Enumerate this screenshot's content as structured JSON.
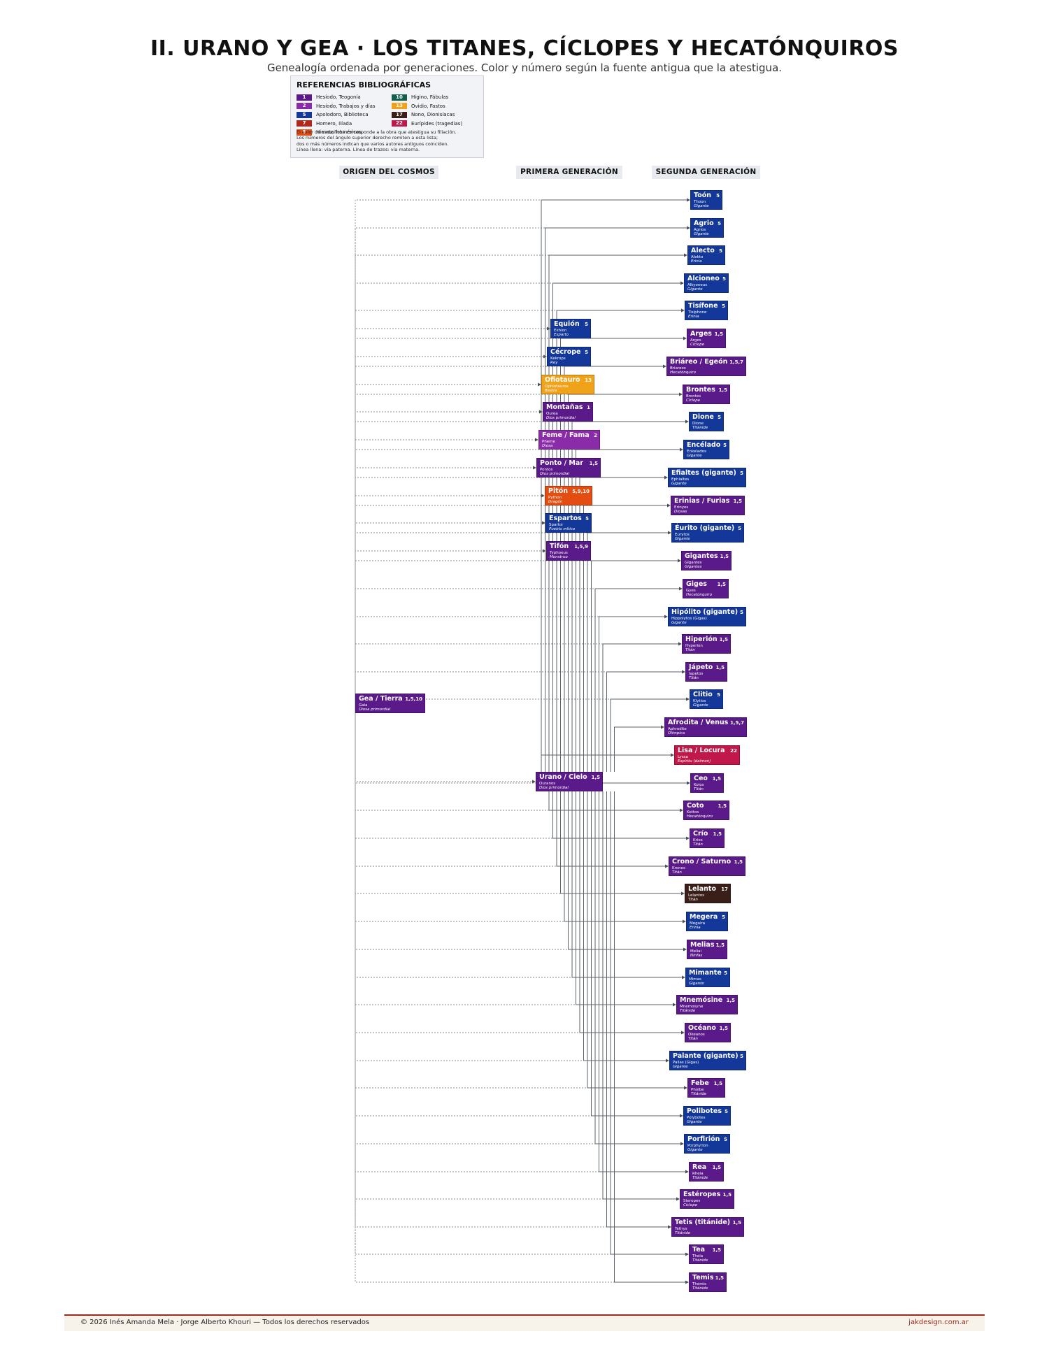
{
  "title": "II. URANO Y GEA · LOS TITANES, CÍCLOPES Y HECATÓNQUIROS",
  "subtitle": "Genealogía ordenada por generaciones. Color y número según la fuente antigua que la atestigua.",
  "legend": {
    "title": "REFERENCIAS BIBLIOGRÁFICAS",
    "sources": [
      {
        "num": "1",
        "label": "Hesíodo, Teogonía",
        "color": "#5b1a8a"
      },
      {
        "num": "2",
        "label": "Hesíodo, Trabajos y días",
        "color": "#8a2ba8"
      },
      {
        "num": "5",
        "label": "Apolodoro, Biblioteca",
        "color": "#14389a"
      },
      {
        "num": "7",
        "label": "Homero, Ilíada",
        "color": "#b0281c"
      },
      {
        "num": "9",
        "label": "Himnos homéricos",
        "color": "#e44d12"
      },
      {
        "num": "10",
        "label": "Higino, Fábulas",
        "color": "#145e4e"
      },
      {
        "num": "13",
        "label": "Ovidio, Fastos",
        "color": "#f0a21a"
      },
      {
        "num": "17",
        "label": "Nono, Dionisíacas",
        "color": "#3a1e18"
      },
      {
        "num": "22",
        "label": "Eurípides (tragedias)",
        "color": "#c0184a"
      }
    ],
    "notes": [
      "El color de cada ficha corresponde a la obra que atestigua su filiación.",
      "Los números del ángulo superior derecho remiten a esta lista;",
      "dos o más números indican que varios autores antiguos coinciden.",
      "Línea llena: vía paterna. Línea de trazos: vía materna."
    ]
  },
  "columns": [
    "ORIGEN DEL COSMOS",
    "PRIMERA GENERACIÓN",
    "SEGUNDA GENERACIÓN"
  ],
  "nodes": [
    {
      "id": "gea",
      "name": "Gea / Tierra",
      "src": "1,5,10",
      "greek": "Gaia",
      "type": "Diosa primordial",
      "color": "#5b1a8a"
    },
    {
      "id": "equion",
      "name": "Equión",
      "src": "5",
      "greek": "Ekhion",
      "type": "Esparto",
      "color": "#14389a"
    },
    {
      "id": "cecrope",
      "name": "Cécrope",
      "src": "5",
      "greek": "Kekrops",
      "type": "Rey",
      "color": "#14389a"
    },
    {
      "id": "ofiotauro",
      "name": "Ofiotauro",
      "src": "13",
      "greek": "Ophiotauros",
      "type": "Bestia",
      "color": "#f0a21a"
    },
    {
      "id": "montanas",
      "name": "Montañas",
      "src": "1",
      "greek": "Ourea",
      "type": "Dios primordial",
      "color": "#5b1a8a"
    },
    {
      "id": "feme",
      "name": "Feme / Fama",
      "src": "2",
      "greek": "Pheme",
      "type": "Diosa",
      "color": "#8a2ba8"
    },
    {
      "id": "ponto",
      "name": "Ponto / Mar",
      "src": "1,5",
      "greek": "Pontos",
      "type": "Dios primordial",
      "color": "#5b1a8a"
    },
    {
      "id": "piton",
      "name": "Pitón",
      "src": "5,9,10",
      "greek": "Python",
      "type": "Dragón",
      "color": "#e44d12"
    },
    {
      "id": "espartos",
      "name": "Espartos",
      "src": "5",
      "greek": "Spartoi",
      "type": "Pueblo mítico",
      "color": "#14389a"
    },
    {
      "id": "tifon",
      "name": "Tifón",
      "src": "1,5,9",
      "greek": "Typhoeus",
      "type": "Monstruo",
      "color": "#5b1a8a"
    },
    {
      "id": "urano",
      "name": "Urano / Cielo",
      "src": "1,5",
      "greek": "Ouranos",
      "type": "Dios primordial",
      "color": "#5b1a8a"
    },
    {
      "id": "toon",
      "name": "Toón",
      "src": "5",
      "greek": "Thoon",
      "type": "Gigante",
      "color": "#14389a"
    },
    {
      "id": "agrio",
      "name": "Agrio",
      "src": "5",
      "greek": "Agrios",
      "type": "Gigante",
      "color": "#14389a"
    },
    {
      "id": "alecto",
      "name": "Alecto",
      "src": "5",
      "greek": "Alekto",
      "type": "Erinia",
      "color": "#14389a"
    },
    {
      "id": "alcioneo",
      "name": "Alcioneo",
      "src": "5",
      "greek": "Alkyoneus",
      "type": "Gigante",
      "color": "#14389a"
    },
    {
      "id": "tisifone",
      "name": "Tisífone",
      "src": "5",
      "greek": "Tisiphone",
      "type": "Erinia",
      "color": "#14389a"
    },
    {
      "id": "arges",
      "name": "Arges",
      "src": "1,5",
      "greek": "Arges",
      "type": "Cíclope",
      "color": "#5b1a8a"
    },
    {
      "id": "briareo",
      "name": "Briáreo / Egeón",
      "src": "1,5,7",
      "greek": "Briareos",
      "type": "Hecatónquiro",
      "color": "#5b1a8a"
    },
    {
      "id": "brontes",
      "name": "Brontes",
      "src": "1,5",
      "greek": "Brontes",
      "type": "Cíclope",
      "color": "#5b1a8a"
    },
    {
      "id": "dione",
      "name": "Dione",
      "src": "5",
      "greek": "Dione",
      "type": "Titánide",
      "color": "#14389a"
    },
    {
      "id": "encelado",
      "name": "Encélado",
      "src": "5",
      "greek": "Enkelados",
      "type": "Gigante",
      "color": "#14389a"
    },
    {
      "id": "efialtes",
      "name": "Efialtes (gigante)",
      "src": "5",
      "greek": "Ephialtes",
      "type": "Gigante",
      "color": "#14389a"
    },
    {
      "id": "erinias",
      "name": "Erinias / Furias",
      "src": "1,5",
      "greek": "Erinyes",
      "type": "Diosas",
      "color": "#5b1a8a"
    },
    {
      "id": "eurito",
      "name": "Éurito (gigante)",
      "src": "5",
      "greek": "Eurytos",
      "type": "Gigante",
      "color": "#14389a"
    },
    {
      "id": "gigantes",
      "name": "Gigantes",
      "src": "1,5",
      "greek": "Gigantes",
      "type": "Gigantes",
      "color": "#5b1a8a"
    },
    {
      "id": "giges",
      "name": "Giges",
      "src": "1,5",
      "greek": "Gyes",
      "type": "Hecatónquiro",
      "color": "#5b1a8a"
    },
    {
      "id": "hipolito",
      "name": "Hipólito (gigante)",
      "src": "5",
      "greek": "Hippolytos (Gigas)",
      "type": "Gigante",
      "color": "#14389a"
    },
    {
      "id": "hiperion",
      "name": "Hiperión",
      "src": "1,5",
      "greek": "Hyperion",
      "type": "Titán",
      "color": "#5b1a8a"
    },
    {
      "id": "japeto",
      "name": "Jápeto",
      "src": "1,5",
      "greek": "Iapetos",
      "type": "Titán",
      "color": "#5b1a8a"
    },
    {
      "id": "clitio",
      "name": "Clitio",
      "src": "5",
      "greek": "Klytios",
      "type": "Gigante",
      "color": "#14389a"
    },
    {
      "id": "afrodita",
      "name": "Afrodita / Venus",
      "src": "1,5,7",
      "greek": "Aphrodite",
      "type": "Olímpica",
      "color": "#5b1a8a"
    },
    {
      "id": "lisa",
      "name": "Lisa / Locura",
      "src": "22",
      "greek": "Lyssa",
      "type": "Espíritu (daímon)",
      "color": "#c0184a"
    },
    {
      "id": "ceo",
      "name": "Ceo",
      "src": "1,5",
      "greek": "Koios",
      "type": "Titán",
      "color": "#5b1a8a"
    },
    {
      "id": "coto",
      "name": "Coto",
      "src": "1,5",
      "greek": "Kottos",
      "type": "Hecatónquiro",
      "color": "#5b1a8a"
    },
    {
      "id": "crio",
      "name": "Crío",
      "src": "1,5",
      "greek": "Krios",
      "type": "Titán",
      "color": "#5b1a8a"
    },
    {
      "id": "crono",
      "name": "Crono / Saturno",
      "src": "1,5",
      "greek": "Kronos",
      "type": "Titán",
      "color": "#5b1a8a"
    },
    {
      "id": "lelanto",
      "name": "Lelanto",
      "src": "17",
      "greek": "Lelantos",
      "type": "Titán",
      "color": "#3a1e18"
    },
    {
      "id": "megera",
      "name": "Megera",
      "src": "5",
      "greek": "Megaira",
      "type": "Erinia",
      "color": "#14389a"
    },
    {
      "id": "melias",
      "name": "Melias",
      "src": "1,5",
      "greek": "Meliai",
      "type": "Ninfas",
      "color": "#5b1a8a"
    },
    {
      "id": "mimante",
      "name": "Mimante",
      "src": "5",
      "greek": "Mimas",
      "type": "Gigante",
      "color": "#14389a"
    },
    {
      "id": "mnemosine",
      "name": "Mnemósine",
      "src": "1,5",
      "greek": "Mnemosyne",
      "type": "Titánide",
      "color": "#5b1a8a"
    },
    {
      "id": "oceano",
      "name": "Océano",
      "src": "1,5",
      "greek": "Okeanos",
      "type": "Titán",
      "color": "#5b1a8a"
    },
    {
      "id": "palante",
      "name": "Palante (gigante)",
      "src": "5",
      "greek": "Pallas (Gigas)",
      "type": "Gigante",
      "color": "#14389a"
    },
    {
      "id": "febe",
      "name": "Febe",
      "src": "1,5",
      "greek": "Phoibe",
      "type": "Titánide",
      "color": "#5b1a8a"
    },
    {
      "id": "polibotes",
      "name": "Polibotes",
      "src": "5",
      "greek": "Polybotes",
      "type": "Gigante",
      "color": "#14389a"
    },
    {
      "id": "porfirion",
      "name": "Porfirión",
      "src": "5",
      "greek": "Porphyrion",
      "type": "Gigante",
      "color": "#14389a"
    },
    {
      "id": "rea",
      "name": "Rea",
      "src": "1,5",
      "greek": "Rheia",
      "type": "Titánide",
      "color": "#5b1a8a"
    },
    {
      "id": "esteropes",
      "name": "Estéropes",
      "src": "1,5",
      "greek": "Steropes",
      "type": "Cíclope",
      "color": "#5b1a8a"
    },
    {
      "id": "tetis",
      "name": "Tetis (titánide)",
      "src": "1,5",
      "greek": "Tethys",
      "type": "Titánide",
      "color": "#5b1a8a"
    },
    {
      "id": "tea",
      "name": "Tea",
      "src": "1,5",
      "greek": "Theia",
      "type": "Titánide",
      "color": "#5b1a8a"
    },
    {
      "id": "temis",
      "name": "Temis",
      "src": "1,5",
      "greek": "Themis",
      "type": "Titánide",
      "color": "#5b1a8a"
    }
  ],
  "links": {
    "from_gea": [
      "toon",
      "agrio",
      "alecto",
      "alcioneo",
      "tisifone",
      "equion",
      "arges",
      "cecrope",
      "briareo",
      "ofiotauro",
      "brontes",
      "montanas",
      "dione",
      "feme",
      "encelado",
      "ponto",
      "efialtes",
      "piton",
      "erinias",
      "espartos",
      "eurito",
      "tifon",
      "gigantes",
      "giges",
      "hipolito",
      "hiperion",
      "japeto",
      "clitio",
      "urano",
      "ceo",
      "coto",
      "crio",
      "crono",
      "lelanto",
      "megera",
      "melias",
      "mimante",
      "mnemosine",
      "oceano",
      "palante",
      "febe",
      "polibotes",
      "porfirion",
      "rea",
      "esteropes",
      "tetis",
      "tea",
      "temis"
    ],
    "from_urano": [
      "toon",
      "agrio",
      "alecto",
      "alcioneo",
      "tisifone",
      "arges",
      "briareo",
      "brontes",
      "dione",
      "encelado",
      "efialtes",
      "erinias",
      "eurito",
      "gigantes",
      "giges",
      "hipolito",
      "hiperion",
      "japeto",
      "clitio",
      "afrodita",
      "lisa",
      "ceo",
      "coto",
      "crio",
      "crono",
      "lelanto",
      "megera",
      "melias",
      "mimante",
      "mnemosine",
      "oceano",
      "palante",
      "febe",
      "polibotes",
      "porfirion",
      "rea",
      "esteropes",
      "tetis",
      "tea",
      "temis"
    ]
  },
  "footer": {
    "left": "© 2026  Inés Amanda Mela  ·  Jorge Alberto Khouri  —  Todos los derechos reservados",
    "right": "jakdesign.com.ar"
  }
}
